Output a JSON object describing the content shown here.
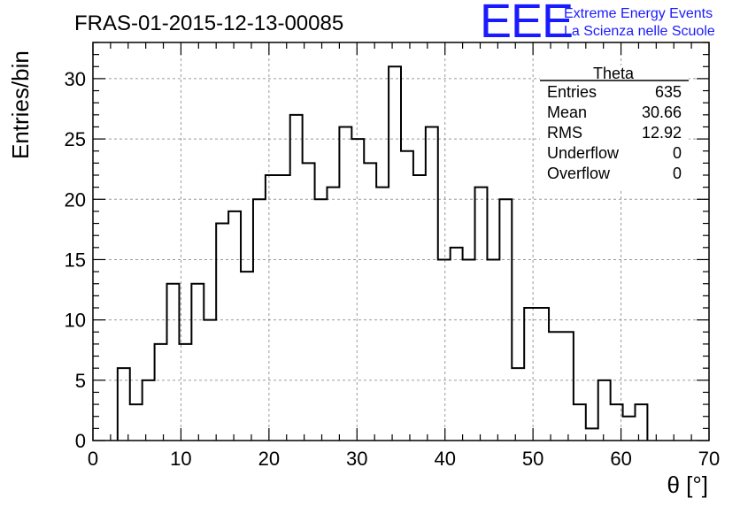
{
  "chart_data": {
    "type": "bar",
    "style": "step-histogram",
    "title": "FRAS-01-2015-12-13-00085",
    "xlabel": "θ [°]",
    "ylabel": "Entries/bin",
    "xlim": [
      0,
      70
    ],
    "ylim": [
      0,
      33
    ],
    "xticks": [
      "0",
      "10",
      "20",
      "30",
      "40",
      "50",
      "60",
      "70"
    ],
    "yticks": [
      "0",
      "5",
      "10",
      "15",
      "20",
      "25",
      "30"
    ],
    "grid": true,
    "bin_width": 1.4,
    "bins": [
      {
        "x": 2.8,
        "value": 6
      },
      {
        "x": 4.2,
        "value": 3
      },
      {
        "x": 5.6,
        "value": 5
      },
      {
        "x": 7.0,
        "value": 8
      },
      {
        "x": 8.4,
        "value": 13
      },
      {
        "x": 9.8,
        "value": 8
      },
      {
        "x": 11.2,
        "value": 13
      },
      {
        "x": 12.6,
        "value": 10
      },
      {
        "x": 14.0,
        "value": 18
      },
      {
        "x": 15.4,
        "value": 19
      },
      {
        "x": 16.8,
        "value": 14
      },
      {
        "x": 18.2,
        "value": 20
      },
      {
        "x": 19.6,
        "value": 22
      },
      {
        "x": 21.0,
        "value": 22
      },
      {
        "x": 22.4,
        "value": 27
      },
      {
        "x": 23.8,
        "value": 23
      },
      {
        "x": 25.2,
        "value": 20
      },
      {
        "x": 26.6,
        "value": 21
      },
      {
        "x": 28.0,
        "value": 26
      },
      {
        "x": 29.4,
        "value": 25
      },
      {
        "x": 30.8,
        "value": 23
      },
      {
        "x": 32.2,
        "value": 21
      },
      {
        "x": 33.6,
        "value": 31
      },
      {
        "x": 35.0,
        "value": 24
      },
      {
        "x": 36.4,
        "value": 22
      },
      {
        "x": 37.8,
        "value": 26
      },
      {
        "x": 39.2,
        "value": 15
      },
      {
        "x": 40.6,
        "value": 16
      },
      {
        "x": 42.0,
        "value": 15
      },
      {
        "x": 43.4,
        "value": 21
      },
      {
        "x": 44.8,
        "value": 15
      },
      {
        "x": 46.2,
        "value": 20
      },
      {
        "x": 47.6,
        "value": 6
      },
      {
        "x": 49.0,
        "value": 11
      },
      {
        "x": 50.4,
        "value": 11
      },
      {
        "x": 51.8,
        "value": 9
      },
      {
        "x": 53.2,
        "value": 9
      },
      {
        "x": 54.6,
        "value": 3
      },
      {
        "x": 56.0,
        "value": 1
      },
      {
        "x": 57.4,
        "value": 5
      },
      {
        "x": 58.8,
        "value": 3
      },
      {
        "x": 60.2,
        "value": 2
      },
      {
        "x": 61.6,
        "value": 3
      }
    ],
    "stats_box": {
      "name": "Theta",
      "placement": "top-right",
      "rows": [
        {
          "label": "Entries",
          "value": "635"
        },
        {
          "label": "Mean",
          "value": "30.66"
        },
        {
          "label": "RMS",
          "value": "12.92"
        },
        {
          "label": "Underflow",
          "value": "0"
        },
        {
          "label": "Overflow",
          "value": "0"
        }
      ]
    }
  },
  "logo": {
    "mark": "EEE",
    "line1": "Extreme Energy Events",
    "line2": "La Scienza nelle Scuole",
    "color": "#1a1aff"
  }
}
